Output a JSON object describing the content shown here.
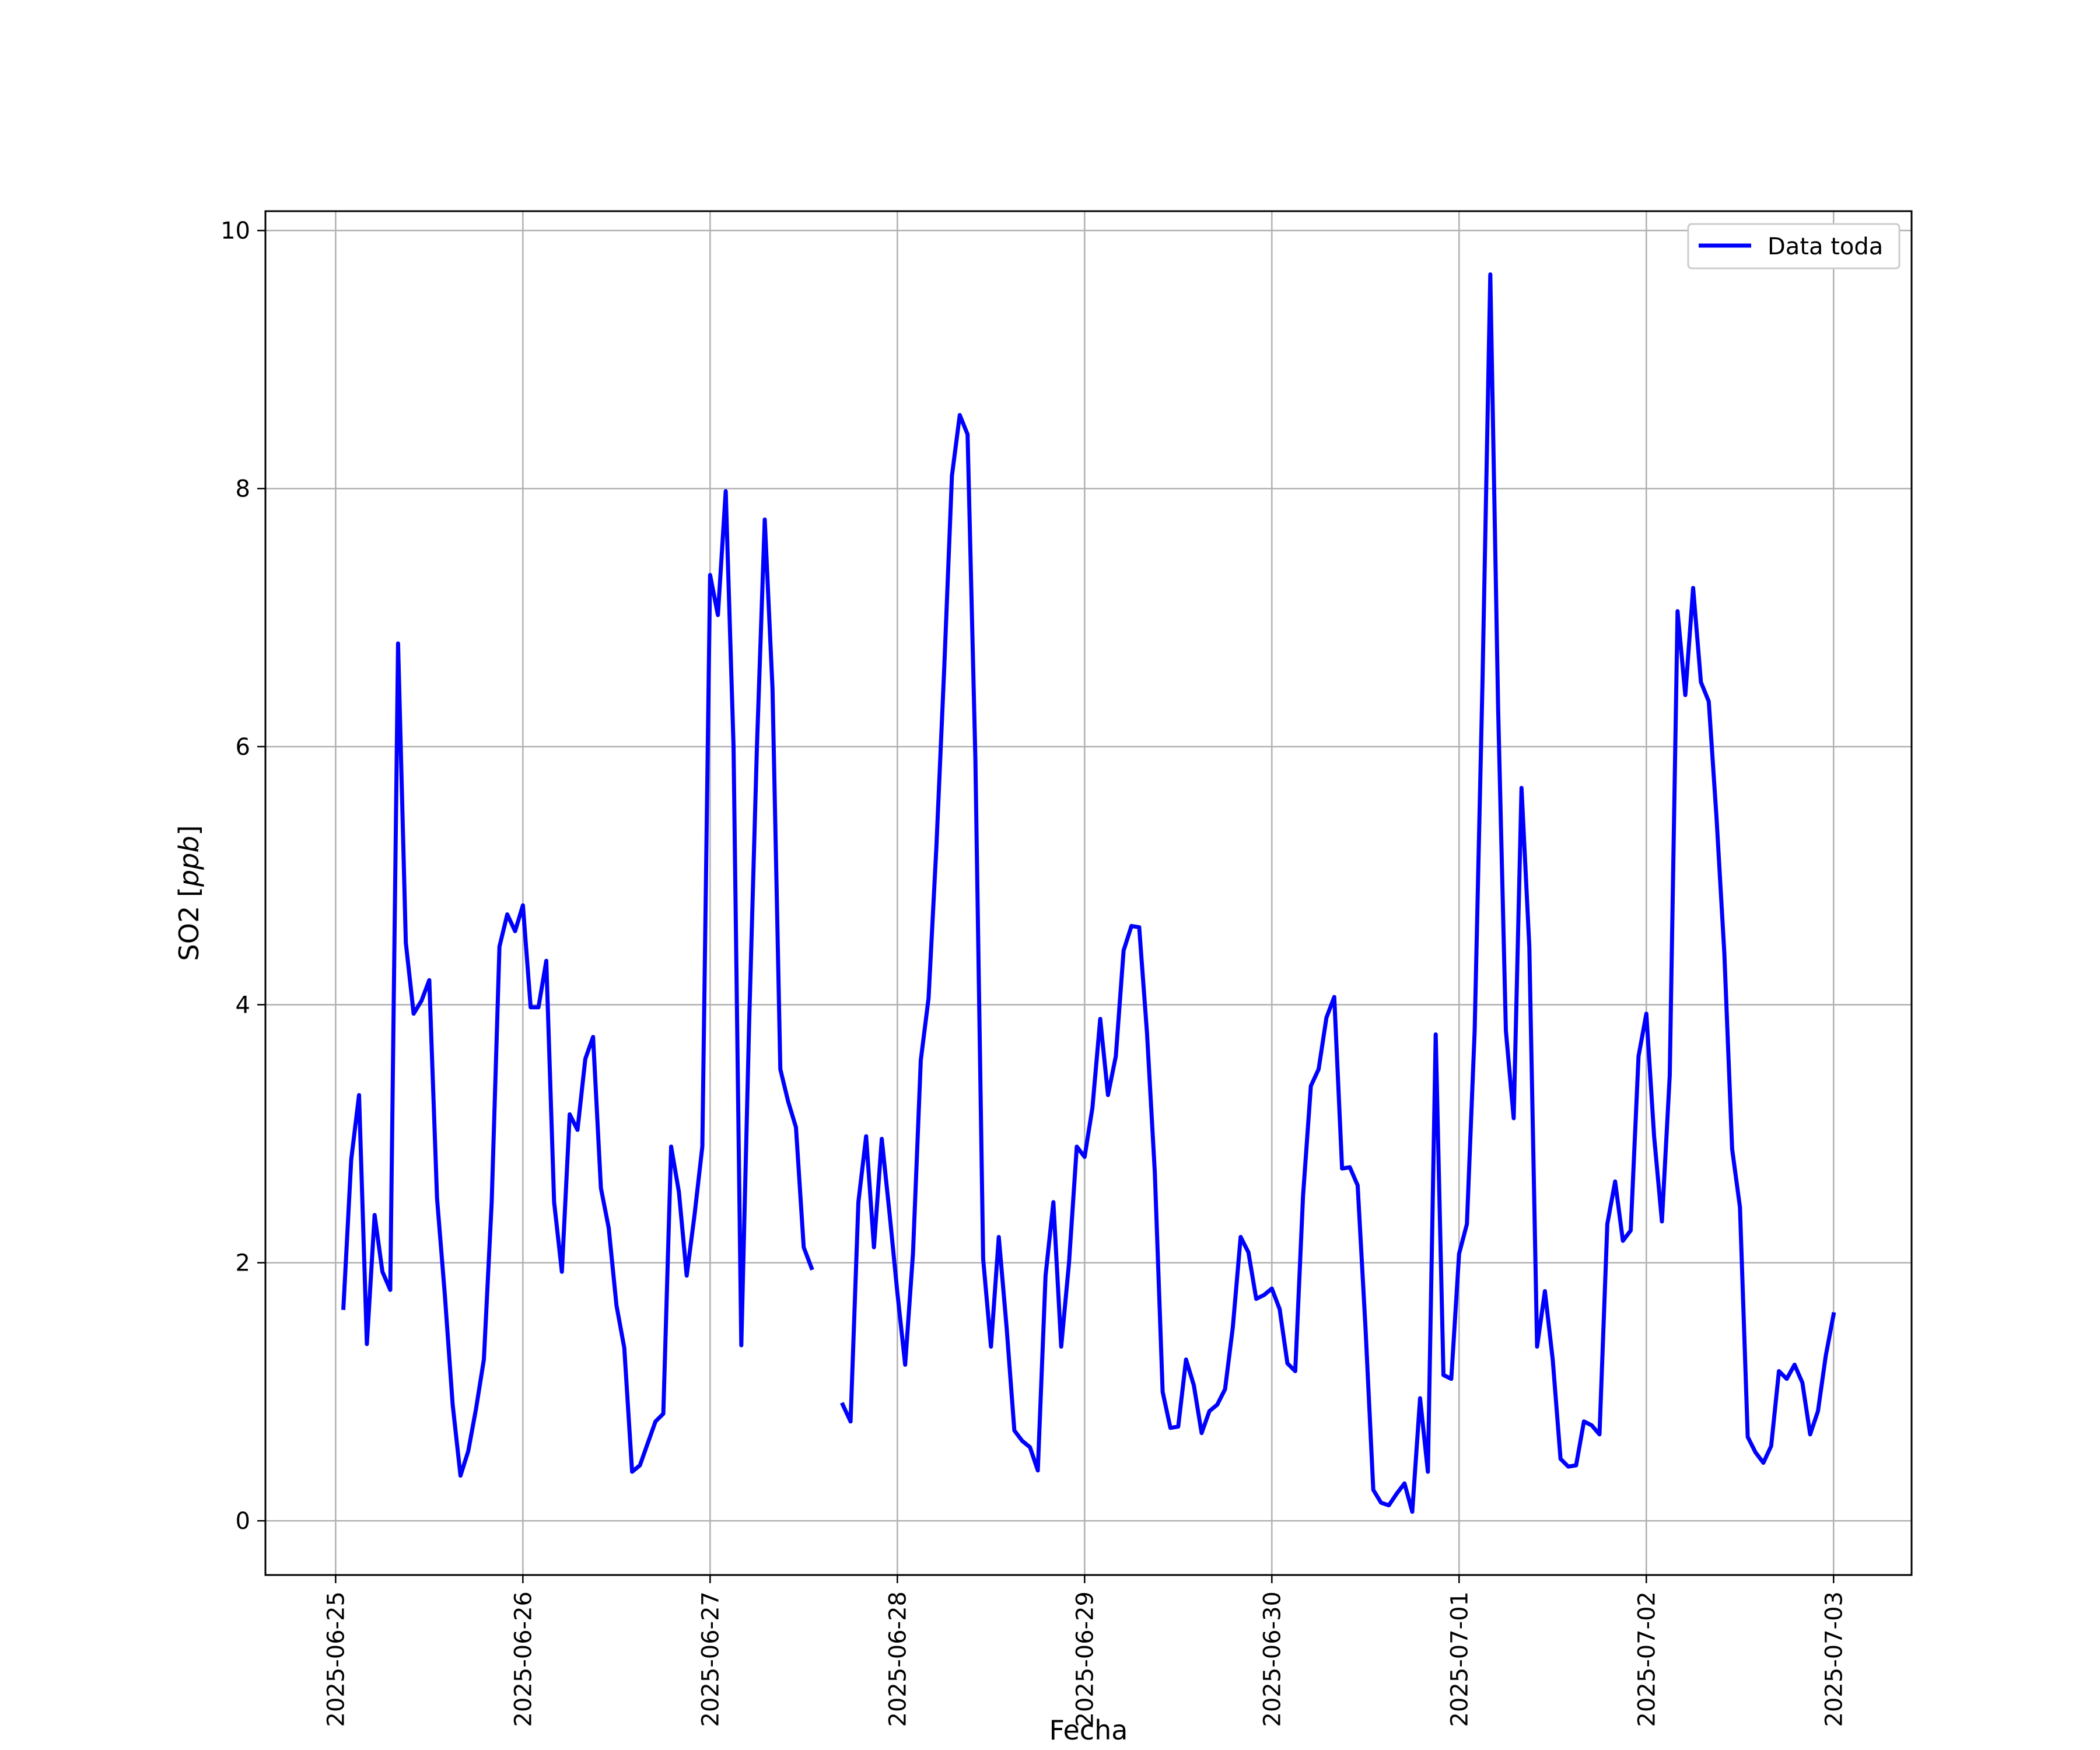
{
  "chart_data": {
    "type": "line",
    "title": "",
    "xlabel": "Fecha",
    "ylabel": "SO2 [ppb]",
    "ylabel_parts": {
      "prefix": "SO2 [",
      "unit": "ppb",
      "suffix": "]"
    },
    "ylim": [
      -0.42,
      10.15
    ],
    "xlim": [
      "2025-06-24 15:00",
      "2025-07-03 10:00"
    ],
    "y_ticks": [
      "0",
      "2",
      "4",
      "6",
      "8",
      "10"
    ],
    "x_ticks": [
      "2025-06-25",
      "2025-06-26",
      "2025-06-27",
      "2025-06-28",
      "2025-06-29",
      "2025-06-30",
      "2025-07-01",
      "2025-07-02",
      "2025-07-03"
    ],
    "grid": true,
    "legend_position": "top-right",
    "series": [
      {
        "name": "Data toda",
        "color": "#0000ff",
        "points": [
          [
            "2025-06-25 01:00",
            1.65
          ],
          [
            "2025-06-25 02:00",
            2.8
          ],
          [
            "2025-06-25 03:00",
            3.3
          ],
          [
            "2025-06-25 04:00",
            1.37
          ],
          [
            "2025-06-25 05:00",
            2.37
          ],
          [
            "2025-06-25 06:00",
            1.93
          ],
          [
            "2025-06-25 07:00",
            1.79
          ],
          [
            "2025-06-25 08:00",
            6.8
          ],
          [
            "2025-06-25 09:00",
            4.48
          ],
          [
            "2025-06-25 10:00",
            3.93
          ],
          [
            "2025-06-25 11:00",
            4.03
          ],
          [
            "2025-06-25 12:00",
            4.19
          ],
          [
            "2025-06-25 13:00",
            2.5
          ],
          [
            "2025-06-25 14:00",
            1.75
          ],
          [
            "2025-06-25 15:00",
            0.9
          ],
          [
            "2025-06-25 16:00",
            0.35
          ],
          [
            "2025-06-25 17:00",
            0.54
          ],
          [
            "2025-06-25 18:00",
            0.87
          ],
          [
            "2025-06-25 19:00",
            1.25
          ],
          [
            "2025-06-25 20:00",
            2.47
          ],
          [
            "2025-06-25 21:00",
            4.45
          ],
          [
            "2025-06-25 22:00",
            4.7
          ],
          [
            "2025-06-25 23:00",
            4.57
          ],
          [
            "2025-06-26 00:00",
            4.77
          ],
          [
            "2025-06-26 01:00",
            3.98
          ],
          [
            "2025-06-26 02:00",
            3.98
          ],
          [
            "2025-06-26 03:00",
            4.34
          ],
          [
            "2025-06-26 04:00",
            2.47
          ],
          [
            "2025-06-26 05:00",
            1.93
          ],
          [
            "2025-06-26 06:00",
            3.15
          ],
          [
            "2025-06-26 07:00",
            3.03
          ],
          [
            "2025-06-26 08:00",
            3.58
          ],
          [
            "2025-06-26 09:00",
            3.75
          ],
          [
            "2025-06-26 10:00",
            2.58
          ],
          [
            "2025-06-26 11:00",
            2.27
          ],
          [
            "2025-06-26 12:00",
            1.67
          ],
          [
            "2025-06-26 13:00",
            1.34
          ],
          [
            "2025-06-26 14:00",
            0.38
          ],
          [
            "2025-06-26 15:00",
            0.43
          ],
          [
            "2025-06-26 16:00",
            0.6
          ],
          [
            "2025-06-26 17:00",
            0.77
          ],
          [
            "2025-06-26 18:00",
            0.83
          ],
          [
            "2025-06-26 19:00",
            2.9
          ],
          [
            "2025-06-26 20:00",
            2.55
          ],
          [
            "2025-06-26 21:00",
            1.9
          ],
          [
            "2025-06-26 22:00",
            2.37
          ],
          [
            "2025-06-26 23:00",
            2.9
          ],
          [
            "2025-06-27 00:00",
            7.33
          ],
          [
            "2025-06-27 01:00",
            7.02
          ],
          [
            "2025-06-27 02:00",
            7.98
          ],
          [
            "2025-06-27 03:00",
            6.0
          ],
          [
            "2025-06-27 04:00",
            1.36
          ],
          [
            "2025-06-27 05:00",
            3.85
          ],
          [
            "2025-06-27 06:00",
            6.0
          ],
          [
            "2025-06-27 07:00",
            7.76
          ],
          [
            "2025-06-27 08:00",
            6.45
          ],
          [
            "2025-06-27 09:00",
            3.5
          ],
          [
            "2025-06-27 10:00",
            3.25
          ],
          [
            "2025-06-27 11:00",
            3.05
          ],
          [
            "2025-06-27 12:00",
            2.12
          ],
          [
            "2025-06-27 13:00",
            1.96
          ],
          null,
          [
            "2025-06-27 17:00",
            0.9
          ],
          [
            "2025-06-27 18:00",
            0.77
          ],
          [
            "2025-06-27 19:00",
            2.47
          ],
          [
            "2025-06-27 20:00",
            2.98
          ],
          [
            "2025-06-27 21:00",
            2.12
          ],
          [
            "2025-06-27 22:00",
            2.96
          ],
          [
            "2025-06-27 23:00",
            2.38
          ],
          [
            "2025-06-28 00:00",
            1.77
          ],
          [
            "2025-06-28 01:00",
            1.21
          ],
          [
            "2025-06-28 02:00",
            2.07
          ],
          [
            "2025-06-28 03:00",
            3.57
          ],
          [
            "2025-06-28 04:00",
            4.05
          ],
          [
            "2025-06-28 05:00",
            5.22
          ],
          [
            "2025-06-28 06:00",
            6.6
          ],
          [
            "2025-06-28 07:00",
            8.1
          ],
          [
            "2025-06-28 08:00",
            8.57
          ],
          [
            "2025-06-28 09:00",
            8.42
          ],
          [
            "2025-06-28 10:00",
            5.9
          ],
          [
            "2025-06-28 11:00",
            2.03
          ],
          [
            "2025-06-28 12:00",
            1.35
          ],
          [
            "2025-06-28 13:00",
            2.2
          ],
          [
            "2025-06-28 14:00",
            1.5
          ],
          [
            "2025-06-28 15:00",
            0.7
          ],
          [
            "2025-06-28 16:00",
            0.62
          ],
          [
            "2025-06-28 17:00",
            0.57
          ],
          [
            "2025-06-28 18:00",
            0.39
          ],
          [
            "2025-06-28 19:00",
            1.9
          ],
          [
            "2025-06-28 20:00",
            2.47
          ],
          [
            "2025-06-28 21:00",
            1.35
          ],
          [
            "2025-06-28 22:00",
            2.0
          ],
          [
            "2025-06-28 23:00",
            2.9
          ],
          [
            "2025-06-29 00:00",
            2.82
          ],
          [
            "2025-06-29 01:00",
            3.2
          ],
          [
            "2025-06-29 02:00",
            3.89
          ],
          [
            "2025-06-29 03:00",
            3.3
          ],
          [
            "2025-06-29 04:00",
            3.6
          ],
          [
            "2025-06-29 05:00",
            4.42
          ],
          [
            "2025-06-29 06:00",
            4.61
          ],
          [
            "2025-06-29 07:00",
            4.6
          ],
          [
            "2025-06-29 08:00",
            3.78
          ],
          [
            "2025-06-29 09:00",
            2.7
          ],
          [
            "2025-06-29 10:00",
            1.0
          ],
          [
            "2025-06-29 11:00",
            0.72
          ],
          [
            "2025-06-29 12:00",
            0.73
          ],
          [
            "2025-06-29 13:00",
            1.25
          ],
          [
            "2025-06-29 14:00",
            1.05
          ],
          [
            "2025-06-29 15:00",
            0.68
          ],
          [
            "2025-06-29 16:00",
            0.85
          ],
          [
            "2025-06-29 17:00",
            0.9
          ],
          [
            "2025-06-29 18:00",
            1.02
          ],
          [
            "2025-06-29 19:00",
            1.5
          ],
          [
            "2025-06-29 20:00",
            2.2
          ],
          [
            "2025-06-29 21:00",
            2.08
          ],
          [
            "2025-06-29 22:00",
            1.72
          ],
          [
            "2025-06-29 23:00",
            1.75
          ],
          [
            "2025-06-30 00:00",
            1.8
          ],
          [
            "2025-06-30 01:00",
            1.64
          ],
          [
            "2025-06-30 02:00",
            1.22
          ],
          [
            "2025-06-30 03:00",
            1.16
          ],
          [
            "2025-06-30 04:00",
            2.52
          ],
          [
            "2025-06-30 05:00",
            3.37
          ],
          [
            "2025-06-30 06:00",
            3.5
          ],
          [
            "2025-06-30 07:00",
            3.9
          ],
          [
            "2025-06-30 08:00",
            4.06
          ],
          [
            "2025-06-30 09:00",
            2.73
          ],
          [
            "2025-06-30 10:00",
            2.74
          ],
          [
            "2025-06-30 11:00",
            2.6
          ],
          [
            "2025-06-30 12:00",
            1.5
          ],
          [
            "2025-06-30 13:00",
            0.24
          ],
          [
            "2025-06-30 14:00",
            0.14
          ],
          [
            "2025-06-30 15:00",
            0.12
          ],
          [
            "2025-06-30 16:00",
            0.21
          ],
          [
            "2025-06-30 17:00",
            0.29
          ],
          [
            "2025-06-30 18:00",
            0.07
          ],
          [
            "2025-06-30 19:00",
            0.95
          ],
          [
            "2025-06-30 20:00",
            0.38
          ],
          [
            "2025-06-30 21:00",
            3.77
          ],
          [
            "2025-06-30 22:00",
            1.13
          ],
          [
            "2025-06-30 23:00",
            1.1
          ],
          [
            "2025-07-01 00:00",
            2.07
          ],
          [
            "2025-07-01 01:00",
            2.3
          ],
          [
            "2025-07-01 02:00",
            3.8
          ],
          [
            "2025-07-01 03:00",
            6.5
          ],
          [
            "2025-07-01 04:00",
            9.66
          ],
          [
            "2025-07-01 05:00",
            6.3
          ],
          [
            "2025-07-01 06:00",
            3.8
          ],
          [
            "2025-07-01 07:00",
            3.12
          ],
          [
            "2025-07-01 08:00",
            5.68
          ],
          [
            "2025-07-01 09:00",
            4.45
          ],
          [
            "2025-07-01 10:00",
            1.35
          ],
          [
            "2025-07-01 11:00",
            1.78
          ],
          [
            "2025-07-01 12:00",
            1.25
          ],
          [
            "2025-07-01 13:00",
            0.48
          ],
          [
            "2025-07-01 14:00",
            0.42
          ],
          [
            "2025-07-01 15:00",
            0.43
          ],
          [
            "2025-07-01 16:00",
            0.77
          ],
          [
            "2025-07-01 17:00",
            0.74
          ],
          [
            "2025-07-01 18:00",
            0.67
          ],
          [
            "2025-07-01 19:00",
            2.3
          ],
          [
            "2025-07-01 20:00",
            2.63
          ],
          [
            "2025-07-01 21:00",
            2.17
          ],
          [
            "2025-07-01 22:00",
            2.25
          ],
          [
            "2025-07-01 23:00",
            3.6
          ],
          [
            "2025-07-02 00:00",
            3.93
          ],
          [
            "2025-07-02 01:00",
            2.98
          ],
          [
            "2025-07-02 02:00",
            2.32
          ],
          [
            "2025-07-02 03:00",
            3.45
          ],
          [
            "2025-07-02 04:00",
            7.05
          ],
          [
            "2025-07-02 05:00",
            6.4
          ],
          [
            "2025-07-02 06:00",
            7.23
          ],
          [
            "2025-07-02 07:00",
            6.5
          ],
          [
            "2025-07-02 08:00",
            6.35
          ],
          [
            "2025-07-02 09:00",
            5.45
          ],
          [
            "2025-07-02 10:00",
            4.4
          ],
          [
            "2025-07-02 11:00",
            2.88
          ],
          [
            "2025-07-02 12:00",
            2.43
          ],
          [
            "2025-07-02 13:00",
            0.65
          ],
          [
            "2025-07-02 14:00",
            0.53
          ],
          [
            "2025-07-02 15:00",
            0.45
          ],
          [
            "2025-07-02 16:00",
            0.58
          ],
          [
            "2025-07-02 17:00",
            1.16
          ],
          [
            "2025-07-02 18:00",
            1.1
          ],
          [
            "2025-07-02 19:00",
            1.21
          ],
          [
            "2025-07-02 20:00",
            1.07
          ],
          [
            "2025-07-02 21:00",
            0.67
          ],
          [
            "2025-07-02 22:00",
            0.85
          ],
          [
            "2025-07-02 23:00",
            1.28
          ],
          [
            "2025-07-03 00:00",
            1.6
          ]
        ]
      }
    ]
  }
}
